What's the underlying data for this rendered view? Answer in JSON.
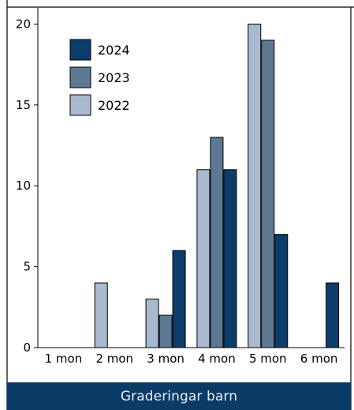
{
  "chart_data": {
    "type": "bar",
    "title": "",
    "xlabel": "",
    "ylabel": "",
    "categories": [
      "1 mon",
      "2 mon",
      "3 mon",
      "4 mon",
      "5 mon",
      "6 mon"
    ],
    "yticks": [
      0,
      5,
      10,
      15,
      20
    ],
    "ylim": [
      0,
      21
    ],
    "grid": false,
    "legend_position": "top-left",
    "series": [
      {
        "name": "2022",
        "color": "#a9b9cf",
        "values": [
          0,
          4,
          3,
          11,
          20,
          0
        ]
      },
      {
        "name": "2023",
        "color": "#5d7893",
        "values": [
          0,
          0,
          2,
          13,
          19,
          0
        ]
      },
      {
        "name": "2024",
        "color": "#0d3d6a",
        "values": [
          0,
          0,
          6,
          11,
          7,
          4
        ]
      }
    ],
    "legend_order": [
      "2024",
      "2023",
      "2022"
    ],
    "caption": "Graderingar barn"
  }
}
